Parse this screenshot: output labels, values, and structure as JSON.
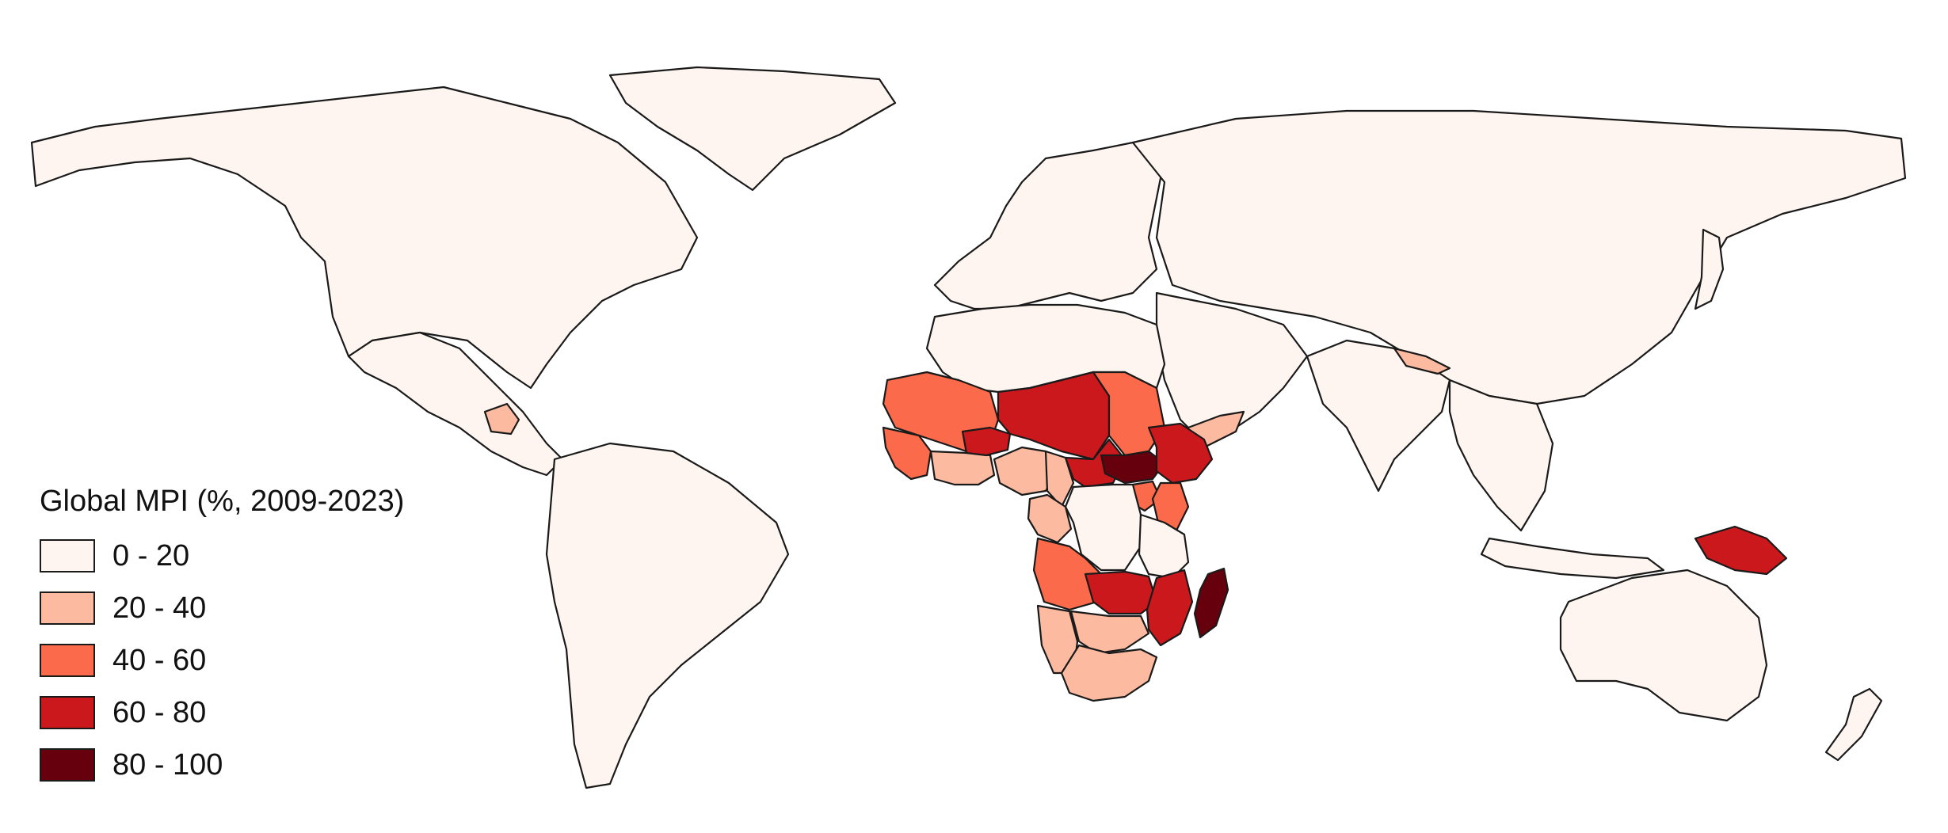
{
  "legend": {
    "title": "Global MPI (%, 2009-2023)",
    "bins": [
      {
        "label": "0 - 20",
        "color": "#fff5f0"
      },
      {
        "label": "20 - 40",
        "color": "#fcbba1"
      },
      {
        "label": "40 - 60",
        "color": "#fb6a4a"
      },
      {
        "label": "60 - 80",
        "color": "#cb181d"
      },
      {
        "label": "80 - 100",
        "color": "#67000d"
      }
    ]
  },
  "regions": [
    {
      "id": "north-america",
      "bin": 0
    },
    {
      "id": "greenland",
      "bin": 0
    },
    {
      "id": "central-america",
      "bin": 0
    },
    {
      "id": "guatemala",
      "bin": 1
    },
    {
      "id": "south-america",
      "bin": 0
    },
    {
      "id": "europe",
      "bin": 0
    },
    {
      "id": "russia-asia",
      "bin": 0
    },
    {
      "id": "north-africa",
      "bin": 0
    },
    {
      "id": "middle-east",
      "bin": 0
    },
    {
      "id": "yemen",
      "bin": 1
    },
    {
      "id": "south-asia",
      "bin": 0
    },
    {
      "id": "nepal",
      "bin": 1
    },
    {
      "id": "southeast-asia",
      "bin": 0
    },
    {
      "id": "japan",
      "bin": 0
    },
    {
      "id": "mauritania-mali",
      "bin": 2
    },
    {
      "id": "west-coast",
      "bin": 2
    },
    {
      "id": "coastal-west-africa",
      "bin": 1
    },
    {
      "id": "niger-chad",
      "bin": 3
    },
    {
      "id": "burkina-faso",
      "bin": 3
    },
    {
      "id": "nigeria",
      "bin": 1
    },
    {
      "id": "cameroon",
      "bin": 1
    },
    {
      "id": "car",
      "bin": 3
    },
    {
      "id": "sudan",
      "bin": 2
    },
    {
      "id": "south-sudan",
      "bin": 4
    },
    {
      "id": "ethiopia",
      "bin": 3
    },
    {
      "id": "kenya",
      "bin": 2
    },
    {
      "id": "uganda",
      "bin": 2
    },
    {
      "id": "congo",
      "bin": 0
    },
    {
      "id": "gabon-congo",
      "bin": 1
    },
    {
      "id": "angola",
      "bin": 2
    },
    {
      "id": "zambia-malawi",
      "bin": 3
    },
    {
      "id": "mozambique",
      "bin": 3
    },
    {
      "id": "tanzania",
      "bin": 0
    },
    {
      "id": "namibia",
      "bin": 1
    },
    {
      "id": "botswana-zimbabwe",
      "bin": 1
    },
    {
      "id": "south-africa",
      "bin": 1
    },
    {
      "id": "madagascar",
      "bin": 4
    },
    {
      "id": "papua-new-guinea",
      "bin": 3
    },
    {
      "id": "indonesia",
      "bin": 0
    },
    {
      "id": "australia",
      "bin": 0
    },
    {
      "id": "new-zealand",
      "bin": 0
    }
  ]
}
